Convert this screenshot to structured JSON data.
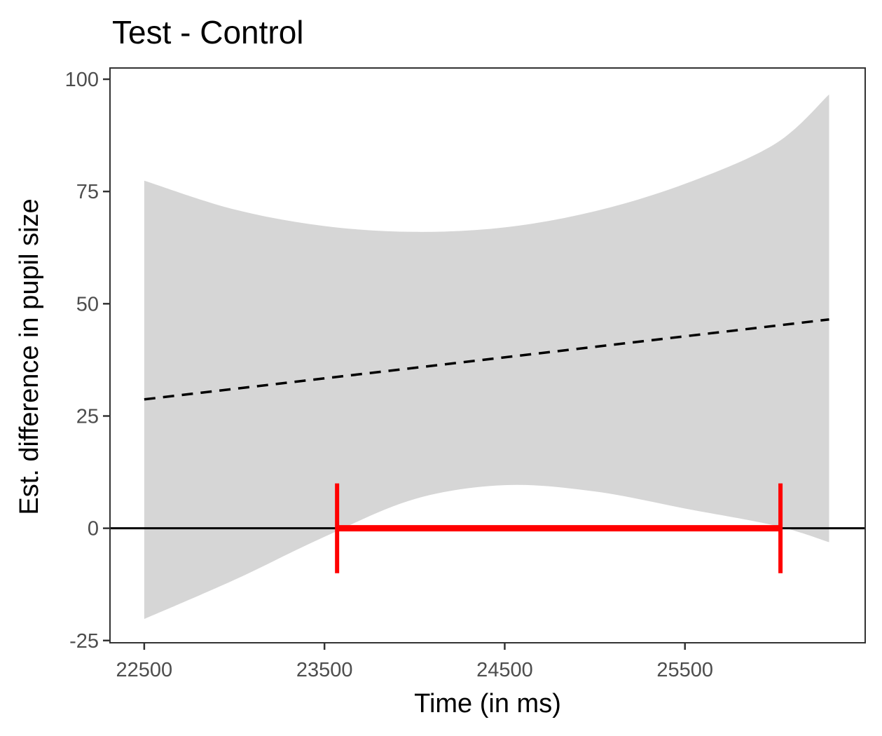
{
  "chart_data": {
    "type": "line",
    "title": "Test - Control",
    "xlabel": "Time (in ms)",
    "ylabel": "Est. difference in pupil size",
    "xlim": [
      22310,
      26500
    ],
    "ylim": [
      -25.5,
      102.5
    ],
    "x_ticks": [
      22500,
      23500,
      24500,
      25500
    ],
    "y_ticks": [
      -25,
      0,
      25,
      50,
      75,
      100
    ],
    "grid": false,
    "series": [
      {
        "role": "estimate",
        "style": "dashed",
        "color": "#000000",
        "x": [
          22500,
          26300
        ],
        "y": [
          28.7,
          46.5
        ]
      },
      {
        "role": "confidence-band",
        "color": "#d6d6d6",
        "x": [
          22500,
          23000,
          23500,
          24000,
          24500,
          25000,
          25500,
          26000,
          26300
        ],
        "upper": [
          77.4,
          71.0,
          67.3,
          66.0,
          67.0,
          70.6,
          76.7,
          85.6,
          96.6
        ],
        "lower": [
          -20.2,
          -11.5,
          -1.9,
          6.5,
          9.6,
          8.2,
          4.4,
          0.6,
          -3.1
        ]
      }
    ],
    "reference_line": {
      "y": 0,
      "color": "#000000"
    },
    "significance_interval": {
      "x_start": 23570,
      "x_end": 26030,
      "y": 0,
      "whisker_half_height": 10,
      "color": "#ff0000"
    }
  }
}
